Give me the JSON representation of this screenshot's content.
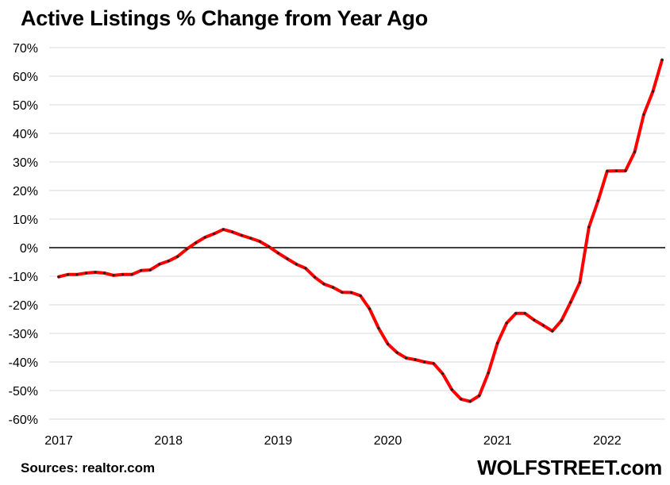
{
  "chart_data": {
    "type": "line",
    "title": "Active Listings % Change from Year Ago",
    "xlabel": "",
    "ylabel": "",
    "ylim": [
      -60,
      70
    ],
    "yticks": [
      70,
      60,
      50,
      40,
      30,
      20,
      10,
      0,
      -10,
      -20,
      -30,
      -40,
      -50,
      -60
    ],
    "ytick_labels": [
      "70%",
      "60%",
      "50%",
      "40%",
      "30%",
      "20%",
      "10%",
      "0%",
      "-10%",
      "-20%",
      "-30%",
      "-40%",
      "-50%",
      "-60%"
    ],
    "xlim": [
      "2017-01",
      "2022-07"
    ],
    "xtick_labels": [
      "2017",
      "2018",
      "2019",
      "2020",
      "2021",
      "2022"
    ],
    "grid": true,
    "line_color": "#ff0000",
    "marker_color": "#222222",
    "zero_line_color": "#000000",
    "series": [
      {
        "x": [
          "2017-01",
          "2017-02",
          "2017-03",
          "2017-04",
          "2017-05",
          "2017-06",
          "2017-07",
          "2017-08",
          "2017-09",
          "2017-10",
          "2017-11",
          "2017-12",
          "2018-01",
          "2018-02",
          "2018-03",
          "2018-04",
          "2018-05",
          "2018-06",
          "2018-07",
          "2018-08",
          "2018-09",
          "2018-10",
          "2018-11",
          "2018-12",
          "2019-01",
          "2019-02",
          "2019-03",
          "2019-04",
          "2019-05",
          "2019-06",
          "2019-07",
          "2019-08",
          "2019-09",
          "2019-10",
          "2019-11",
          "2019-12",
          "2020-01",
          "2020-02",
          "2020-03",
          "2020-04",
          "2020-05",
          "2020-06",
          "2020-07",
          "2020-08",
          "2020-09",
          "2020-10",
          "2020-11",
          "2020-12",
          "2021-01",
          "2021-02",
          "2021-03",
          "2021-04",
          "2021-05",
          "2021-06",
          "2021-07",
          "2021-08",
          "2021-09",
          "2021-10",
          "2021-11",
          "2021-12",
          "2022-01",
          "2022-02",
          "2022-03",
          "2022-04",
          "2022-05",
          "2022-06",
          "2022-07"
        ],
        "values": [
          -10.2,
          -9.4,
          -9.4,
          -8.9,
          -8.6,
          -8.9,
          -9.7,
          -9.4,
          -9.4,
          -8.0,
          -7.8,
          -5.8,
          -4.7,
          -3.1,
          -0.5,
          1.7,
          3.6,
          4.9,
          6.4,
          5.5,
          4.3,
          3.3,
          2.2,
          0.3,
          -1.9,
          -3.9,
          -5.8,
          -7.2,
          -10.3,
          -12.7,
          -13.9,
          -15.6,
          -15.7,
          -16.8,
          -21.4,
          -28.2,
          -33.7,
          -36.7,
          -38.6,
          -39.2,
          -40.0,
          -40.5,
          -44.1,
          -49.7,
          -53.0,
          -53.8,
          -51.8,
          -43.8,
          -33.4,
          -26.4,
          -23.0,
          -23.0,
          -25.3,
          -27.2,
          -29.2,
          -25.5,
          -19.1,
          -12.2,
          7.2,
          16.4,
          26.8,
          26.9,
          26.9,
          33.5,
          46.6,
          54.7,
          65.7
        ]
      }
    ]
  },
  "footer": {
    "source": "Sources: realtor.com",
    "brand": "WOLFSTREET.com"
  }
}
